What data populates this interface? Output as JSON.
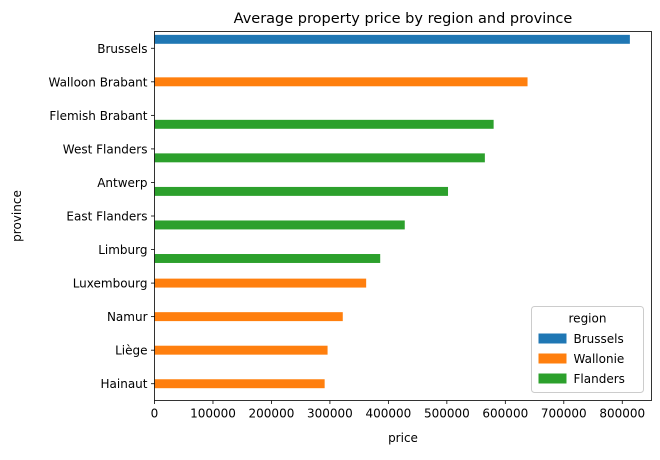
{
  "chart_data": {
    "type": "bar",
    "orientation": "horizontal",
    "title": "Average property price by region and province",
    "xlabel": "price",
    "ylabel": "province",
    "xlim": [
      0,
      850000
    ],
    "xticks": [
      0,
      100000,
      200000,
      300000,
      400000,
      500000,
      600000,
      700000,
      800000
    ],
    "xtick_labels": [
      "0",
      "100000",
      "200000",
      "300000",
      "400000",
      "500000",
      "600000",
      "700000",
      "800000"
    ],
    "categories": [
      "Brussels",
      "Walloon Brabant",
      "Flemish Brabant",
      "West Flanders",
      "Antwerp",
      "East Flanders",
      "Limburg",
      "Luxembourg",
      "Namur",
      "Liège",
      "Hainaut"
    ],
    "grid": false,
    "legend": {
      "title": "region",
      "position": "bottom-right"
    },
    "series": [
      {
        "name": "Brussels",
        "color": "#1f77b4",
        "values": [
          813000,
          null,
          null,
          null,
          null,
          null,
          null,
          null,
          null,
          null,
          null
        ]
      },
      {
        "name": "Wallonie",
        "color": "#ff7f0e",
        "values": [
          null,
          638000,
          null,
          null,
          null,
          null,
          null,
          362000,
          322000,
          296000,
          291000
        ]
      },
      {
        "name": "Flanders",
        "color": "#2ca02c",
        "values": [
          null,
          null,
          580000,
          565000,
          502000,
          428000,
          386000,
          null,
          null,
          null,
          null
        ]
      }
    ]
  }
}
